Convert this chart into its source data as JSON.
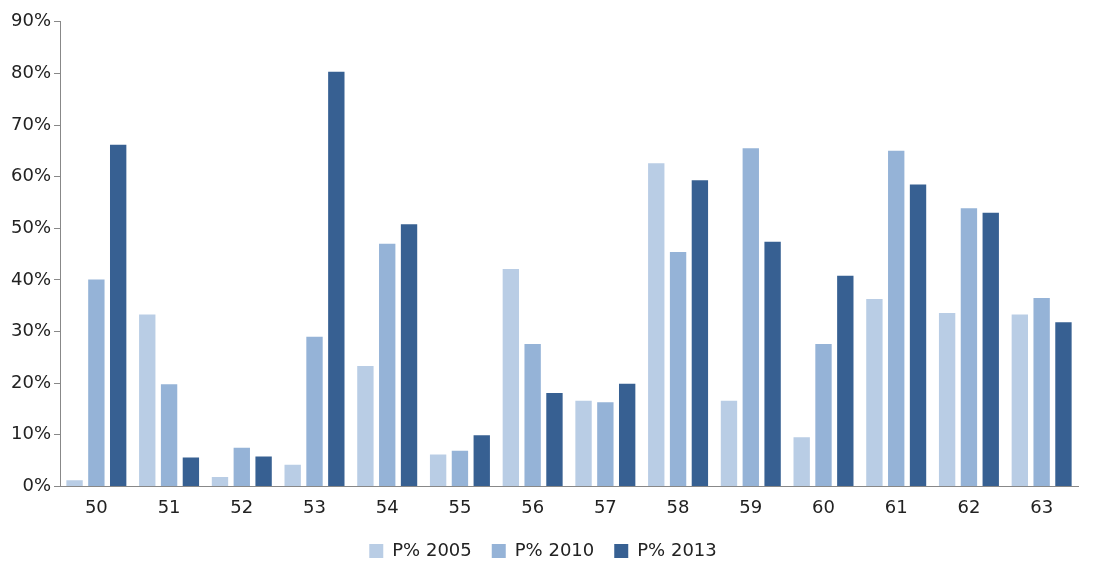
{
  "chart_data": {
    "type": "bar",
    "categories": [
      "50",
      "51",
      "52",
      "53",
      "54",
      "55",
      "56",
      "57",
      "58",
      "59",
      "60",
      "61",
      "62",
      "63"
    ],
    "series": [
      {
        "name": "P% 2005",
        "color": "#b9cde5",
        "values": [
          1.2,
          33.3,
          1.8,
          4.2,
          23.3,
          6.2,
          42.1,
          16.6,
          62.6,
          16.6,
          9.5,
          36.3,
          33.6,
          33.3
        ]
      },
      {
        "name": "P% 2010",
        "color": "#95b3d7",
        "values": [
          40.1,
          19.8,
          7.5,
          29.0,
          47.0,
          6.9,
          27.6,
          16.3,
          45.4,
          65.5,
          27.6,
          65.0,
          53.9,
          36.5
        ]
      },
      {
        "name": "P% 2013",
        "color": "#376092",
        "values": [
          66.2,
          5.6,
          5.8,
          80.3,
          50.8,
          9.9,
          18.1,
          19.9,
          59.3,
          47.4,
          40.8,
          58.5,
          53.0,
          31.8
        ]
      }
    ],
    "ylim": [
      0,
      90
    ],
    "yticks": [
      {
        "value": 0,
        "label": "0%"
      },
      {
        "value": 10,
        "label": "10%"
      },
      {
        "value": 20,
        "label": "20%"
      },
      {
        "value": 30,
        "label": "30%"
      },
      {
        "value": 40,
        "label": "40%"
      },
      {
        "value": 50,
        "label": "50%"
      },
      {
        "value": 60,
        "label": "60%"
      },
      {
        "value": 70,
        "label": "70%"
      },
      {
        "value": 80,
        "label": "80%"
      },
      {
        "value": 90,
        "label": "90%"
      }
    ],
    "grid": false,
    "legend": "bottom"
  }
}
